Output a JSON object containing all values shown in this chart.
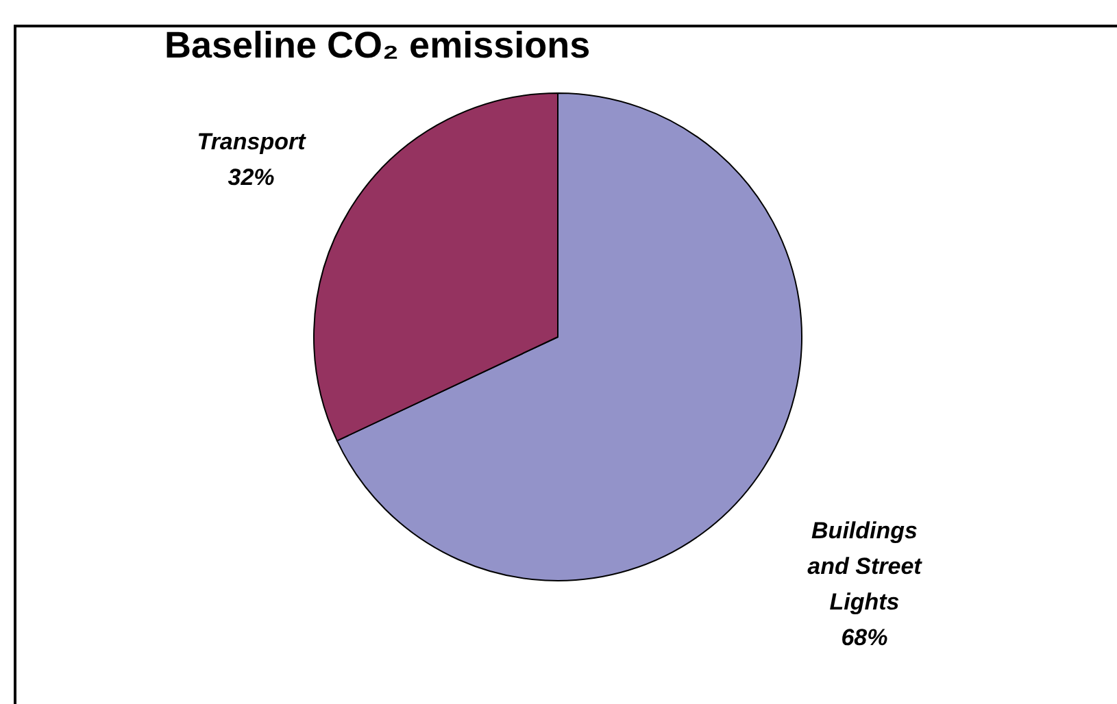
{
  "chart_data": {
    "type": "pie",
    "title": "Baseline CO₂ emissions",
    "categories": [
      "Buildings and Street Lights",
      "Transport"
    ],
    "values": [
      68,
      32
    ],
    "value_labels": [
      "68%",
      "32%"
    ],
    "colors": [
      "#9393c9",
      "#953360"
    ],
    "legend": false
  }
}
